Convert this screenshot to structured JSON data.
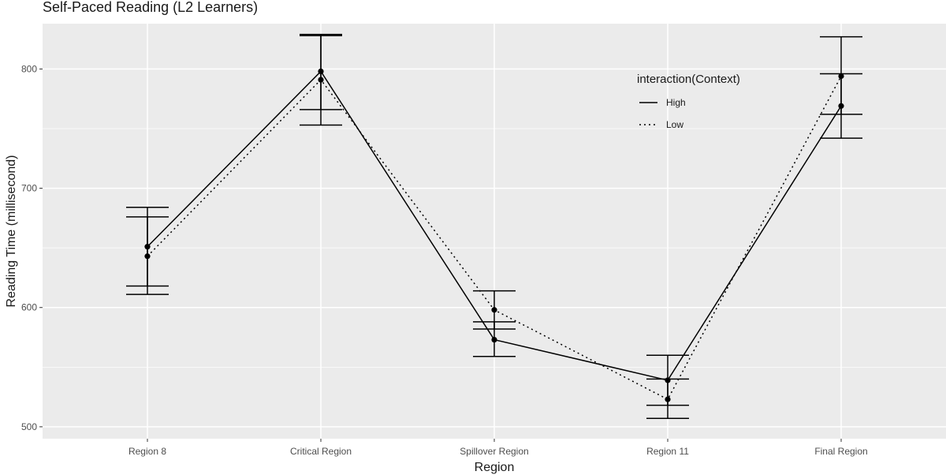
{
  "chart_data": {
    "type": "line",
    "title": "Self-Paced Reading (L2 Learners)",
    "xlabel": "Region",
    "ylabel": "Reading Time (millisecond)",
    "categories": [
      "Region 8",
      "Critical Region",
      "Spillover Region",
      "Region 11",
      "Final Region"
    ],
    "ylim": [
      490,
      838
    ],
    "yticks": [
      500,
      600,
      700,
      800
    ],
    "grid": true,
    "legend": {
      "title": "interaction(Context)",
      "position": "top-right-inside"
    },
    "series": [
      {
        "name": "High",
        "linestyle": "solid",
        "values": [
          651,
          798,
          573,
          539,
          769
        ],
        "error_low": [
          618,
          766,
          559,
          518,
          742
        ],
        "error_high": [
          684,
          829,
          588,
          560,
          796
        ]
      },
      {
        "name": "Low",
        "linestyle": "dotted",
        "values": [
          643,
          791,
          598,
          523,
          794
        ],
        "error_low": [
          611,
          753,
          582,
          507,
          762
        ],
        "error_high": [
          676,
          828,
          614,
          540,
          827
        ]
      }
    ]
  },
  "colors": {
    "panel_background": "#ebebeb",
    "gridline": "#ffffff",
    "series": "#000000"
  }
}
